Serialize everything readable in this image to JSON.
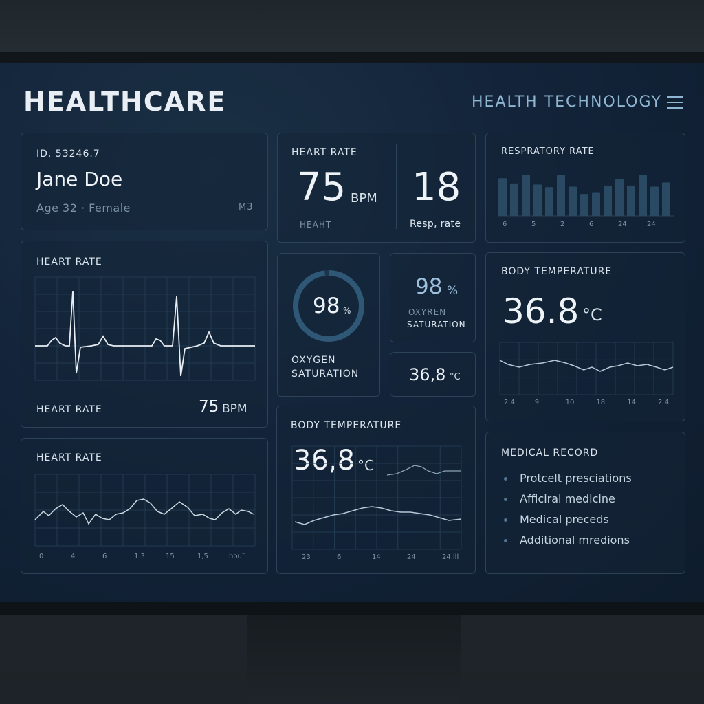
{
  "header": {
    "title": "HEALTHCARE",
    "subtitle": "HEALTH TECHNOLOGY"
  },
  "patient": {
    "id": "ID.  53246.7",
    "name": "Jane Doe",
    "age_gender": "Age 32 · Female",
    "code": "M3"
  },
  "vitals_card": {
    "label": "HEART RATE",
    "hr_value": "75",
    "hr_unit": "BPM",
    "hr_caption": "HEAHT",
    "resp_value": "18",
    "resp_caption": "Resp, rate"
  },
  "resp_card": {
    "label": "RESPRATORY RATE",
    "ticks": [
      "6",
      "5",
      "2",
      "6",
      "24",
      "24"
    ],
    "bars": [
      0.72,
      0.62,
      0.78,
      0.6,
      0.55,
      0.78,
      0.56,
      0.42,
      0.44,
      0.58,
      0.7,
      0.58,
      0.78,
      0.56,
      0.64
    ]
  },
  "ecg_card": {
    "label": "HEART RATE",
    "footer_label": "HEART RATE",
    "footer_value": "75",
    "footer_unit": "BPM"
  },
  "oxygen_ring": {
    "value": "98",
    "unit": "%",
    "label_line1": "OXYGEN",
    "label_line2": "SATURATION",
    "percent": 98
  },
  "oxygen_small": {
    "value": "98",
    "unit": "%",
    "label_line1": "OXYREN",
    "label_line2": "SATURATION"
  },
  "temp_small": {
    "value": "36,8",
    "unit": "°C"
  },
  "body_temp_right": {
    "label": "BODY TEMPERATURE",
    "value": "36.8",
    "unit": "°C",
    "ticks": [
      "2.4",
      "9",
      "10",
      "18",
      "14",
      "2 4"
    ]
  },
  "heart_rate_trend": {
    "label": "HEART RATE",
    "ticks": [
      "0",
      "4",
      "6",
      "1.3",
      "15",
      "1,5",
      "hou˜"
    ]
  },
  "body_temp_center": {
    "label": "BODY TEMPERATURE",
    "value": "36,8",
    "unit": "°C",
    "ticks": [
      "23",
      "6",
      "14",
      "24",
      "24 lll"
    ]
  },
  "medical_record": {
    "label": "MEDICAL RECORD",
    "items": [
      "Protcelt presciations",
      "Afficiral medicine",
      "Medical preceds",
      "Additional mredions"
    ]
  },
  "colors": {
    "accent": "#8fb6d3",
    "panel_border": "#2b4257",
    "background": "#13243a"
  }
}
